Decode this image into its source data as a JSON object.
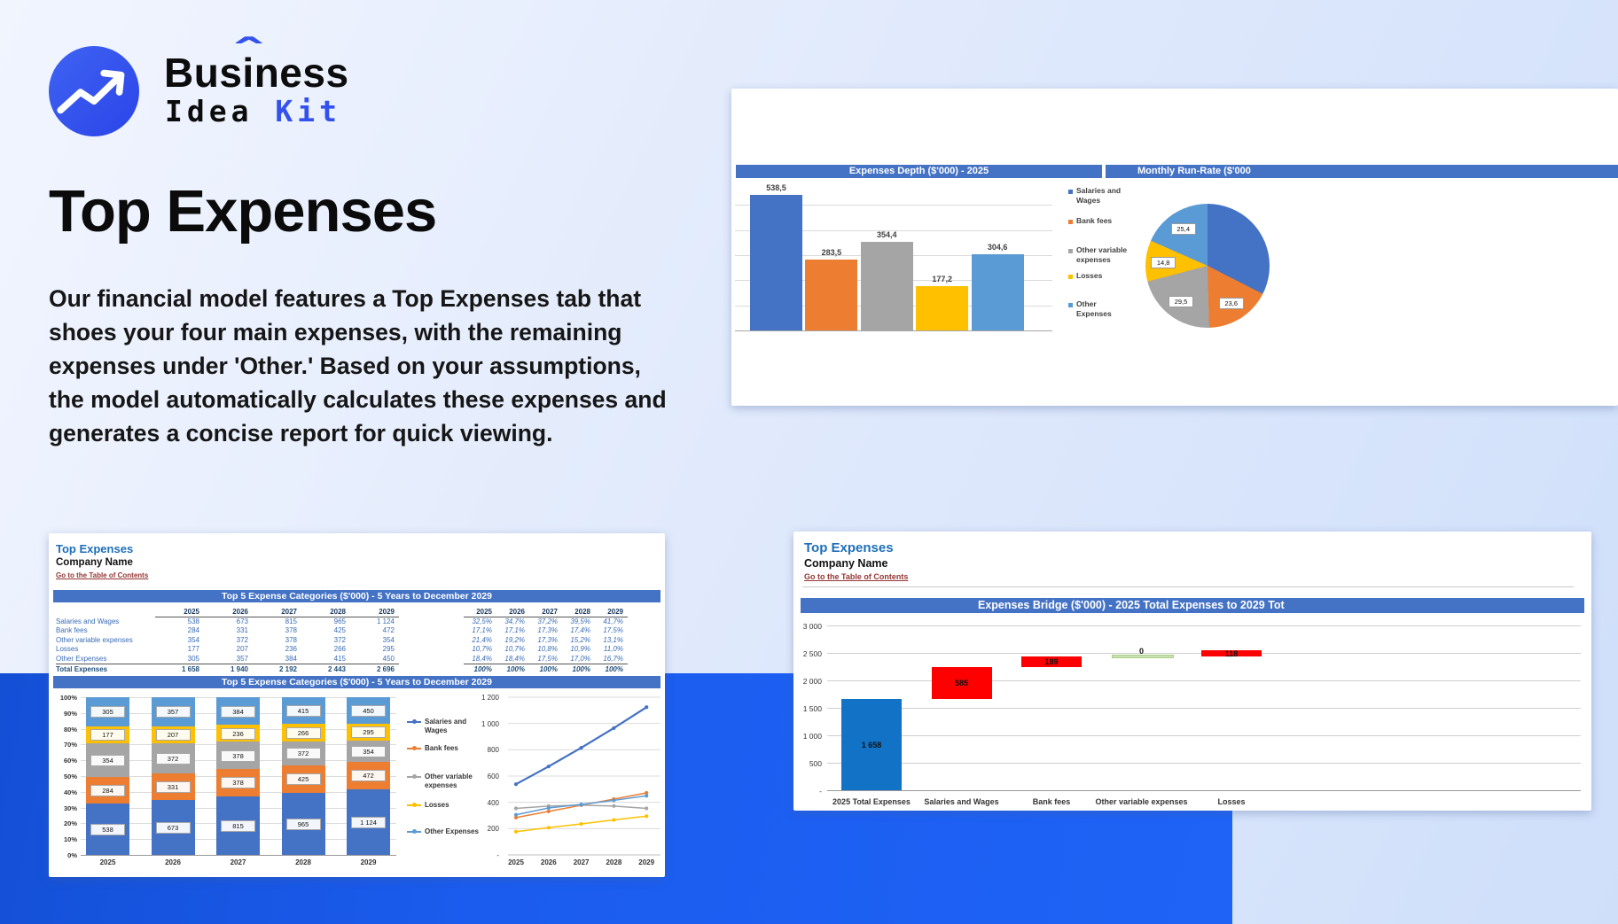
{
  "logo": {
    "part1": "Bus",
    "i": "i",
    "caret": "ˆ",
    "part2": "ness",
    "line2_part1": "Idea",
    "line2_part2": "Kit"
  },
  "hero": {
    "title": "Top Expenses",
    "description": "Our financial model features a Top Expenses tab that shoes your four main expenses, with the remaining expenses under 'Other.' Based on your assumptions, the model automatically calculates these expenses and generates a concise report for quick viewing."
  },
  "colors": {
    "accent_blue": "#3351ee",
    "excel_header": "#4472C4",
    "series": [
      "#4472C4",
      "#ED7D31",
      "#A5A5A5",
      "#FFC000",
      "#5B9BD5"
    ],
    "waterfall_increase": "#FE0000",
    "waterfall_total": "#1273c6",
    "waterfall_zero_fill": "#c9e2ae",
    "waterfall_zero_border": "#a9cf8a",
    "link_maroon": "#943634",
    "table_text": "#3a6cb5",
    "table_total": "#1f4e79"
  },
  "expenses_depth_panel": {
    "bar_header": "Expenses Depth ($'000) - 2025",
    "pie_header": "Monthly Run-Rate ($'000",
    "legend": [
      "Salaries and Wages",
      "Bank fees",
      "Other variable expenses",
      "Losses",
      "Other Expenses"
    ],
    "chart_data": {
      "type": "bar",
      "categories": [
        "Salaries and Wages",
        "Bank fees",
        "Other variable expenses",
        "Losses",
        "Other Expenses"
      ],
      "values": [
        538.5,
        283.5,
        354.4,
        177.2,
        304.6
      ],
      "value_labels": [
        "538,5",
        "283,5",
        "354,4",
        "177,2",
        "304,6"
      ],
      "ylim": [
        0,
        500
      ],
      "gridline_step": 100
    },
    "pie_chart_data": {
      "type": "pie",
      "labels": [
        "Salaries and Wages",
        "Bank fees",
        "Other variable expenses",
        "Losses",
        "Other Expenses"
      ],
      "values": [
        44.9,
        23.6,
        29.5,
        14.8,
        25.4
      ],
      "value_labels": [
        "",
        "23,6",
        "29,5",
        "14,8",
        "25,4"
      ]
    }
  },
  "spreadsheet_panel": {
    "title": "Top Expenses",
    "company": "Company Name",
    "toc_link": "Go to the Table of Contents",
    "table_header": "Top 5 Expense Categories ($'000) - 5 Years to December 2029",
    "chart_header": "Top 5 Expense Categories ($'000) - 5 Years to December 2029",
    "years": [
      "2025",
      "2026",
      "2027",
      "2028",
      "2029"
    ],
    "rows": [
      {
        "label": "Salaries and Wages",
        "values": [
          "538",
          "673",
          "815",
          "965",
          "1 124"
        ],
        "pcts": [
          "32,5%",
          "34,7%",
          "37,2%",
          "39,5%",
          "41,7%"
        ]
      },
      {
        "label": "Bank fees",
        "values": [
          "284",
          "331",
          "378",
          "425",
          "472"
        ],
        "pcts": [
          "17,1%",
          "17,1%",
          "17,3%",
          "17,4%",
          "17,5%"
        ]
      },
      {
        "label": "Other variable expenses",
        "values": [
          "354",
          "372",
          "378",
          "372",
          "354"
        ],
        "pcts": [
          "21,4%",
          "19,2%",
          "17,3%",
          "15,2%",
          "13,1%"
        ]
      },
      {
        "label": "Losses",
        "values": [
          "177",
          "207",
          "236",
          "266",
          "295"
        ],
        "pcts": [
          "10,7%",
          "10,7%",
          "10,8%",
          "10,9%",
          "11,0%"
        ]
      },
      {
        "label": "Other Expenses",
        "values": [
          "305",
          "357",
          "384",
          "415",
          "450"
        ],
        "pcts": [
          "18,4%",
          "18,4%",
          "17,5%",
          "17,0%",
          "16,7%"
        ]
      }
    ],
    "total_row": {
      "label": "Total Expenses",
      "values": [
        "1 658",
        "1 940",
        "2 192",
        "2 443",
        "2 696"
      ],
      "pcts": [
        "100%",
        "100%",
        "100%",
        "100%",
        "100%"
      ]
    },
    "stacked_chart_data": {
      "type": "bar",
      "stacked": true,
      "categories": [
        "2025",
        "2026",
        "2027",
        "2028",
        "2029"
      ],
      "series": [
        {
          "name": "Salaries and Wages",
          "values": [
            538,
            673,
            815,
            965,
            1124
          ],
          "value_labels": [
            "538",
            "673",
            "815",
            "965",
            "1 124"
          ]
        },
        {
          "name": "Bank fees",
          "values": [
            284,
            331,
            378,
            425,
            472
          ],
          "value_labels": [
            "284",
            "331",
            "378",
            "425",
            "472"
          ]
        },
        {
          "name": "Other variable expenses",
          "values": [
            354,
            372,
            378,
            372,
            354
          ],
          "value_labels": [
            "354",
            "372",
            "378",
            "372",
            "354"
          ]
        },
        {
          "name": "Losses",
          "values": [
            177,
            207,
            236,
            266,
            295
          ],
          "value_labels": [
            "177",
            "207",
            "236",
            "266",
            "295"
          ]
        },
        {
          "name": "Other Expenses",
          "values": [
            305,
            357,
            384,
            415,
            450
          ],
          "value_labels": [
            "305",
            "357",
            "384",
            "415",
            "450"
          ]
        }
      ],
      "y_axis_percent_ticks": [
        "0%",
        "10%",
        "20%",
        "30%",
        "40%",
        "50%",
        "60%",
        "70%",
        "80%",
        "90%",
        "100%"
      ]
    },
    "line_chart_data": {
      "type": "line",
      "x": [
        "2025",
        "2026",
        "2027",
        "2028",
        "2029"
      ],
      "legend": [
        "Salaries and Wages",
        "Bank fees",
        "Other variable expenses",
        "Losses",
        "Other Expenses"
      ],
      "series": [
        {
          "name": "Salaries and Wages",
          "values": [
            538,
            673,
            815,
            965,
            1124
          ]
        },
        {
          "name": "Bank fees",
          "values": [
            284,
            331,
            378,
            425,
            472
          ]
        },
        {
          "name": "Other variable expenses",
          "values": [
            354,
            372,
            378,
            372,
            354
          ]
        },
        {
          "name": "Losses",
          "values": [
            177,
            207,
            236,
            266,
            295
          ]
        },
        {
          "name": "Other Expenses",
          "values": [
            305,
            357,
            384,
            415,
            450
          ]
        }
      ],
      "ylim": [
        0,
        1200
      ],
      "y_tick_labels": [
        "-",
        "200",
        "400",
        "600",
        "800",
        "1 000",
        "1 200"
      ]
    }
  },
  "bridge_panel": {
    "title": "Top Expenses",
    "company": "Company Name",
    "toc_link": "Go to the Table of Contents",
    "chart_header": "Expenses Bridge ($'000) - 2025 Total Expenses to 2029 Tot",
    "chart_data": {
      "type": "waterfall",
      "categories": [
        "2025 Total Expenses",
        "Salaries and Wages",
        "Bank fees",
        "Other variable expenses",
        "Losses"
      ],
      "values": [
        1658,
        585,
        189,
        0,
        118
      ],
      "value_labels": [
        "1 658",
        "585",
        "189",
        "0",
        "118"
      ],
      "bar_types": [
        "total",
        "increase",
        "increase",
        "zero",
        "increase"
      ],
      "ylim": [
        0,
        3000
      ],
      "y_tick_labels": [
        "-",
        "500",
        "1 000",
        "1 500",
        "2 000",
        "2 500",
        "3 000"
      ]
    }
  }
}
